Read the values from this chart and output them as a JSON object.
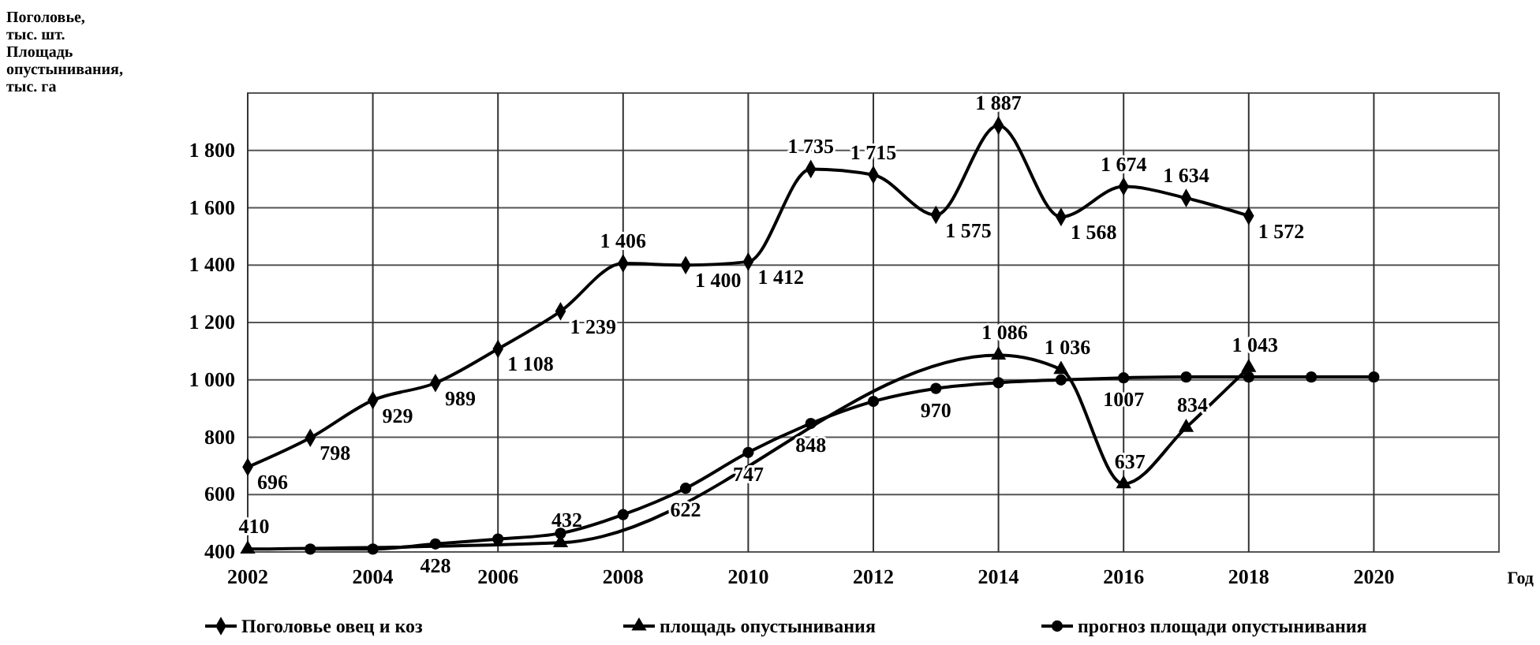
{
  "chart_data": {
    "type": "line",
    "ylabel": "Поголовье,\nтыс. шт.\nПлощадь\nопустынивания,\nтыс. га",
    "xlabel": "Год",
    "xlim": [
      2002,
      2022
    ],
    "xticks": [
      2002,
      2004,
      2006,
      2008,
      2010,
      2012,
      2014,
      2016,
      2018,
      2020
    ],
    "ylim": [
      400,
      2000
    ],
    "yticks": [
      {
        "value": 400,
        "label": "400"
      },
      {
        "value": 600,
        "label": "600"
      },
      {
        "value": 800,
        "label": "800"
      },
      {
        "value": 1000,
        "label": "1 000"
      },
      {
        "value": 1200,
        "label": "1 200"
      },
      {
        "value": 1400,
        "label": "1 400"
      },
      {
        "value": 1600,
        "label": "1 600"
      },
      {
        "value": 1800,
        "label": "1 800"
      }
    ],
    "grid": true,
    "legend": "bottom",
    "series": [
      {
        "name": "Поголовье овец и коз",
        "color": "#000000",
        "marker": "diamond",
        "x": [
          2002,
          2003,
          2004,
          2005,
          2006,
          2007,
          2008,
          2009,
          2010,
          2011,
          2012,
          2013,
          2014,
          2015,
          2016,
          2017,
          2018
        ],
        "values": [
          696,
          798,
          929,
          989,
          1108,
          1239,
          1406,
          1400,
          1412,
          1735,
          1715,
          1575,
          1887,
          1568,
          1674,
          1634,
          1572
        ],
        "value_labels": [
          "696",
          "798",
          "929",
          "989",
          "1 108",
          "1 239",
          "1 406",
          "1 400",
          "1 412",
          "1 735",
          "1 715",
          "1 575",
          "1 887",
          "1 568",
          "1 674",
          "1 634",
          "1 572"
        ]
      },
      {
        "name": "площадь опустынивания",
        "color": "#000000",
        "marker": "triangle",
        "x": [
          2002,
          2007,
          2014,
          2015,
          2016,
          2017,
          2018
        ],
        "values": [
          410,
          432,
          1086,
          1036,
          637,
          834,
          1043
        ],
        "value_labels": [
          "410",
          "432",
          "1 086",
          "1 036",
          "637",
          "834",
          "1 043"
        ]
      },
      {
        "name": "прогноз площади опустынивания",
        "color": "#000000",
        "marker": "circle",
        "x": [
          2003,
          2004,
          2005,
          2006,
          2007,
          2008,
          2009,
          2010,
          2011,
          2012,
          2013,
          2014,
          2015,
          2016,
          2017,
          2018,
          2019,
          2020
        ],
        "values": [
          410,
          410,
          428,
          445,
          465,
          530,
          622,
          747,
          848,
          925,
          970,
          990,
          1000,
          1007,
          1010,
          1010,
          1010,
          1010
        ],
        "value_labels": [
          null,
          null,
          "428",
          null,
          null,
          null,
          "622",
          "747",
          "848",
          null,
          "970",
          null,
          null,
          "1007",
          null,
          null,
          null,
          null
        ]
      }
    ]
  }
}
